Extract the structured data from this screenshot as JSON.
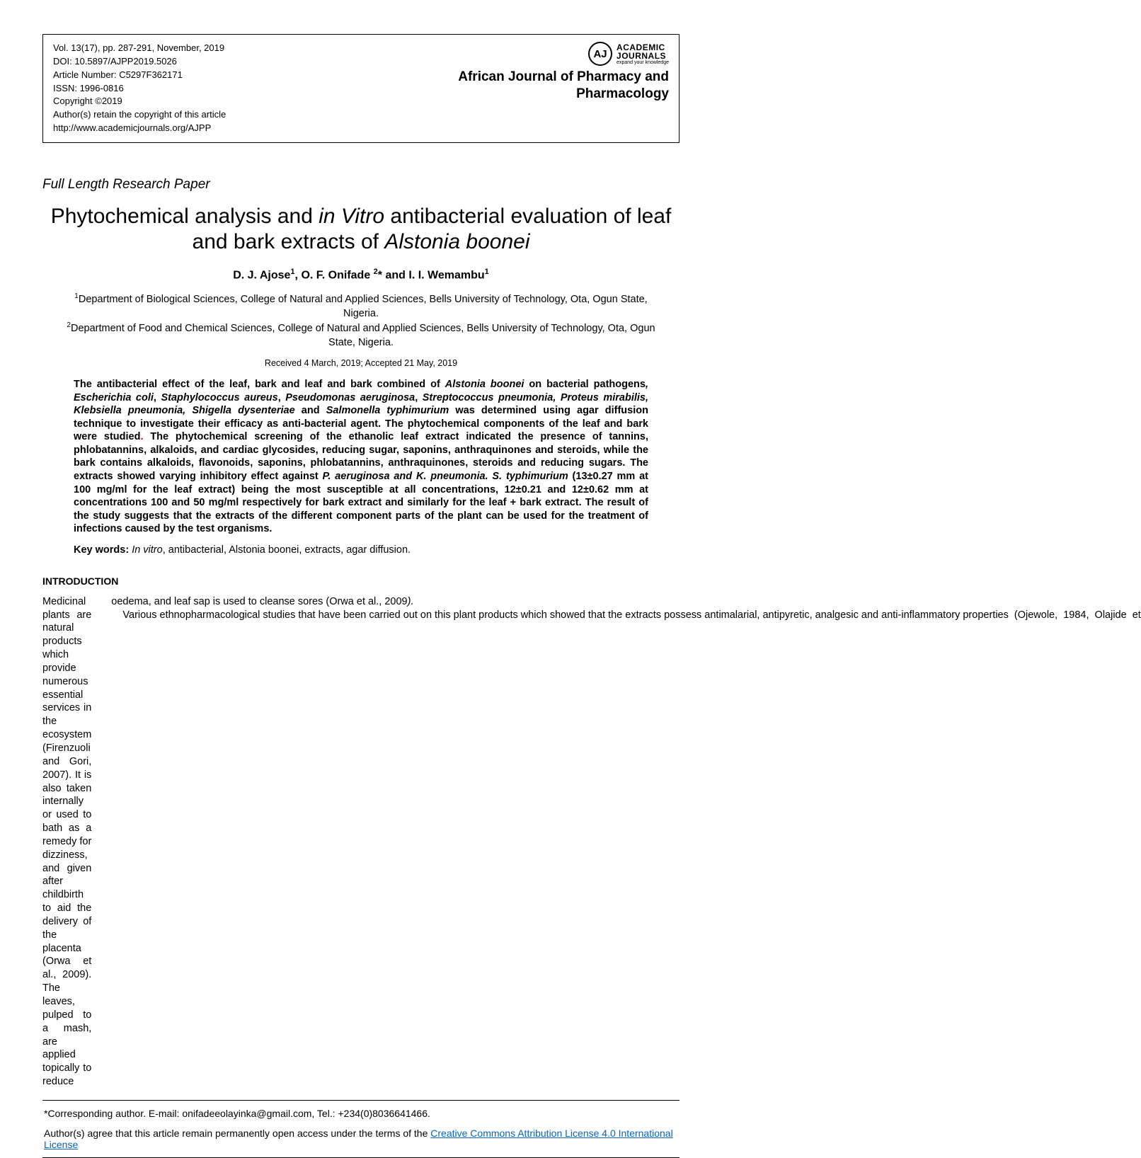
{
  "meta": {
    "volume_line": "Vol. 13(17), pp. 287-291,  November, 2019",
    "doi": "DOI: 10.5897/AJPP2019.5026",
    "article_number": "Article Number: C5297F362171",
    "issn": "ISSN: 1996-0816",
    "copyright": "Copyright ©2019",
    "retain": "Author(s) retain the copyright of this article",
    "url": "http://www.academicjournals.org/AJPP"
  },
  "logo": {
    "circle_text": "AJ",
    "academic": "ACADEMIC",
    "journals": "JOURNALS",
    "tagline": "expand your knowledge"
  },
  "journal_name": "African Journal of Pharmacy and Pharmacology",
  "paper_type": "Full Length Research Paper",
  "title": {
    "pre": "Phytochemical analysis and ",
    "italic1": "in Vitro",
    "mid": " antibacterial evaluation of leaf and bark extracts of ",
    "italic2": "Alstonia boonei"
  },
  "authors": {
    "a1": "D. J. Ajose",
    "s1": "1",
    "a2": ", O. F. Onifade ",
    "s2": "2",
    "star": "*",
    "a3": " and I. I. Wemambu",
    "s3": "1"
  },
  "affiliations": {
    "s1": "1",
    "aff1": "Department of Biological Sciences, College of Natural and Applied Sciences, Bells University of Technology, Ota, Ogun State, Nigeria.",
    "s2": "2",
    "aff2": "Department of Food and Chemical Sciences, College of Natural and Applied Sciences, Bells University of Technology, Ota, Ogun State, Nigeria."
  },
  "dates": "Received 4 March, 2019; Accepted 21 May, 2019",
  "abstract": {
    "p1": "The antibacterial effect of the leaf, bark and leaf and bark combined of ",
    "it1": "Alstonia boonei",
    "p2": " on bacterial pathogens",
    "it2": ", Escherichia coli",
    "p3": ", ",
    "it3": "Staphylococcus aureus",
    "p4": ", ",
    "it4": "Pseudomonas aeruginosa",
    "p5": ", ",
    "it5": "Streptococcus pneumonia, Proteus mirabilis, Klebsiella pneumonia, Shigella dysenteriae",
    "p6": " and ",
    "it6": "Salmonella typhimurium",
    "p7": " was determined using agar diffusion technique to investigate their efficacy as anti-bacterial agent. The phytochemical components of the leaf and bark were studied",
    "dot": ". ",
    "p8": "The phytochemical screening of the ethanolic leaf extract indicated the presence of tannins, phlobatannins, alkaloids, and cardiac glycosides, reducing sugar, saponins, anthraquinones and steroids, while the bark contains alkaloids, flavonoids, saponins, phlobatannins, anthraquinones, steroids and reducing sugars. The extracts showed varying inhibitory effect against ",
    "it7": "P. aeruginosa and K. pneumonia. S. typhimurium",
    "p9": " (13±0.27 mm at 100 mg/ml for the leaf extract) being the most susceptible at all concentrations, 12±0.21 and 12±0.62 mm at concentrations 100 and 50 mg/ml respectively for bark extract and similarly for the leaf + bark extract. The result of the study suggests that the extracts of the different component parts of the plant can be used for the treatment of infections caused by the test organisms."
  },
  "keywords": {
    "label": "Key words:  ",
    "italic": "In vitro",
    "rest": ", antibacterial, Alstonia boonei, extracts, agar diffusion."
  },
  "section_heading": "INTRODUCTION",
  "body": {
    "col1": "Medicinal plants are natural products which provide numerous essential services in the ecosystem (Firenzuoli and Gori, 2007). It is also taken internally or used to bath as a remedy for dizziness, and given after childbirth to aid the delivery of the placenta (Orwa et al., 2009). The leaves, pulped to a mash, are applied topically  to  reduce",
    "col2a": "oedema, and leaf sap is used to cleanse sores (Orwa et al., 2009",
    "col2_it": ").",
    "col2b": "    Various ethnopharmacological studies that have been carried out on this plant products which showed that the extracts possess antimalarial, antipyretic, analgesic and anti-inflammatory properties  (Ojewole,  1984,  Olajide  et"
  },
  "footer": {
    "corresponding": "*Corresponding author. E-mail: onifadeeolayinka@gmail.com, Tel.: +234(0)8036641466.",
    "license_pre": "Author(s) agree that this article remain permanently open access under the terms of the ",
    "license_link": "Creative Commons Attribution License 4.0 International License"
  }
}
